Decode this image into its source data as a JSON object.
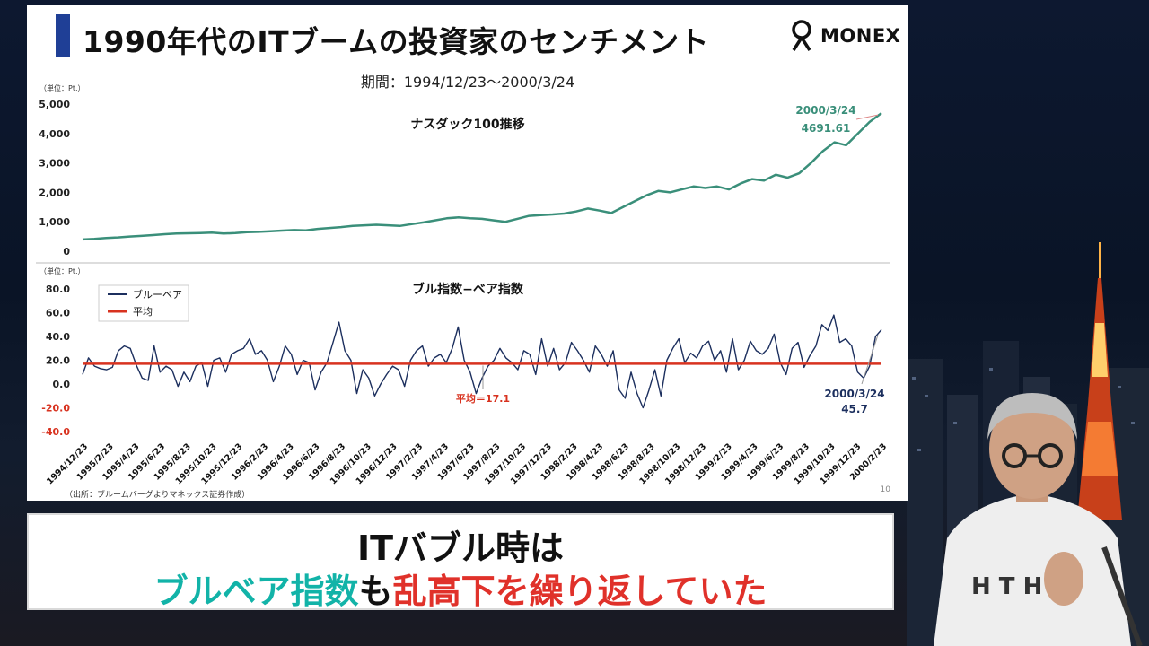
{
  "slide": {
    "title": "1990年代のITブームの投資家のセンチメント",
    "logo_text": "MONEX",
    "period": "期間：1994/12/23〜2000/3/24",
    "page_number": "10",
    "source": "（出所：ブルームバーグよりマネックス証券作成）"
  },
  "caption": {
    "line1": "ITバブル時は",
    "line2_part1": "ブルベア指数",
    "line2_part2": "も",
    "line2_part3": "乱高下を繰り返していた"
  },
  "x_tick_labels": [
    "1994/12/23",
    "1995/2/23",
    "1995/4/23",
    "1995/6/23",
    "1995/8/23",
    "1995/10/23",
    "1995/12/23",
    "1996/2/23",
    "1996/4/23",
    "1996/6/23",
    "1996/8/23",
    "1996/10/23",
    "1996/12/23",
    "1997/2/23",
    "1997/4/23",
    "1997/6/23",
    "1997/8/23",
    "1997/10/23",
    "1997/12/23",
    "1998/2/23",
    "1998/4/23",
    "1998/6/23",
    "1998/8/23",
    "1998/10/23",
    "1998/12/23",
    "1999/2/23",
    "1999/4/23",
    "1999/6/23",
    "1999/8/23",
    "1999/10/23",
    "1999/12/23",
    "2000/2/23"
  ],
  "colors": {
    "nasdaq": "#3a8f7a",
    "bullbear": "#1c2f5e",
    "average": "#d8321f",
    "accent_title": "#1f3f96"
  },
  "chart_data": [
    {
      "type": "line",
      "title": "ナスダック100推移",
      "unit_label": "（単位：Pt.）",
      "ylim": [
        0,
        5000
      ],
      "y_ticks": [
        0,
        1000,
        2000,
        3000,
        4000,
        5000
      ],
      "y_tick_labels": [
        "0",
        "1,000",
        "2,000",
        "3,000",
        "4,000",
        "5,000"
      ],
      "annotation": {
        "date": "2000/3/24",
        "value": "4691.61"
      },
      "series": [
        {
          "values": [
            400,
            420,
            450,
            470,
            500,
            520,
            550,
            580,
            600,
            610,
            620,
            630,
            600,
            620,
            650,
            660,
            680,
            700,
            720,
            710,
            760,
            790,
            820,
            860,
            880,
            900,
            880,
            860,
            920,
            980,
            1050,
            1120,
            1150,
            1120,
            1100,
            1050,
            1000,
            1100,
            1200,
            1230,
            1250,
            1280,
            1350,
            1450,
            1380,
            1300,
            1500,
            1700,
            1900,
            2050,
            2000,
            2100,
            2200,
            2150,
            2200,
            2100,
            2300,
            2450,
            2400,
            2600,
            2500,
            2650,
            3000,
            3400,
            3700,
            3600,
            4000,
            4400,
            4691.61
          ]
        }
      ]
    },
    {
      "type": "line",
      "title": "ブル指数−ベア指数",
      "unit_label": "（単位：Pt.）",
      "ylim": [
        -40,
        80
      ],
      "y_ticks": [
        -40,
        -20,
        0,
        20,
        40,
        60,
        80
      ],
      "y_tick_labels": [
        "-40.0",
        "-20.0",
        "0.0",
        "20.0",
        "40.0",
        "60.0",
        "80.0"
      ],
      "average_label": "平均＝17.1",
      "annotation": {
        "date": "2000/3/24",
        "value": "45.7"
      },
      "series": [
        {
          "name": "ブルーベア",
          "values": [
            8,
            22,
            15,
            13,
            12,
            14,
            28,
            32,
            30,
            16,
            5,
            3,
            32,
            10,
            15,
            12,
            -2,
            10,
            2,
            15,
            18,
            -2,
            20,
            22,
            10,
            25,
            28,
            30,
            38,
            25,
            28,
            20,
            2,
            15,
            32,
            25,
            8,
            20,
            18,
            -5,
            10,
            18,
            35,
            52,
            28,
            20,
            -8,
            12,
            5,
            -10,
            0,
            8,
            15,
            12,
            -2,
            20,
            28,
            32,
            15,
            22,
            25,
            18,
            30,
            48,
            20,
            10,
            -8,
            5,
            15,
            20,
            30,
            22,
            18,
            12,
            28,
            25,
            8,
            38,
            15,
            30,
            12,
            18,
            35,
            28,
            20,
            10,
            32,
            25,
            15,
            28,
            -5,
            -12,
            10,
            -8,
            -20,
            -5,
            12,
            -10,
            20,
            30,
            38,
            18,
            26,
            22,
            32,
            36,
            20,
            28,
            10,
            38,
            12,
            20,
            36,
            28,
            25,
            30,
            42,
            18,
            8,
            30,
            35,
            14,
            24,
            32,
            50,
            45,
            58,
            35,
            38,
            32,
            10,
            5,
            15,
            40,
            45.7
          ]
        },
        {
          "name": "平均",
          "values": [
            17.1,
            17.1
          ]
        }
      ]
    }
  ]
}
